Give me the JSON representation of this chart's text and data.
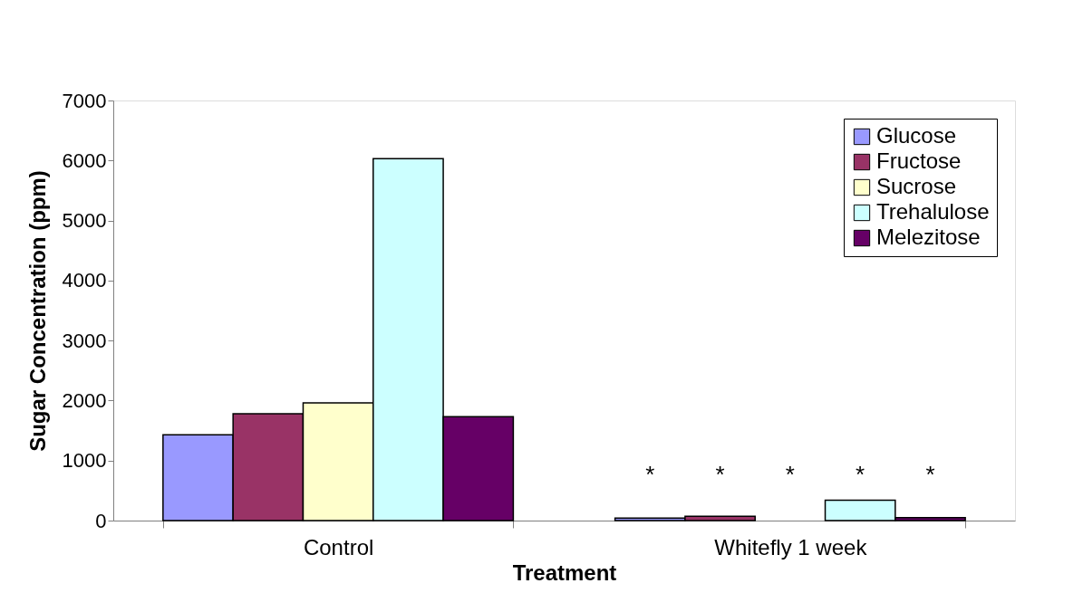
{
  "chart_data": {
    "type": "bar",
    "xlabel": "Treatment",
    "ylabel": "Sugar Concentration (ppm)",
    "categories": [
      "Control",
      "Whitefly 1 week"
    ],
    "series": [
      {
        "name": "Glucose",
        "color": "#9999ff",
        "values": [
          1430,
          40
        ]
      },
      {
        "name": "Fructose",
        "color": "#993366",
        "values": [
          1780,
          70
        ]
      },
      {
        "name": "Sucrose",
        "color": "#ffffcc",
        "values": [
          1960,
          0
        ]
      },
      {
        "name": "Trehalulose",
        "color": "#ccffff",
        "values": [
          6030,
          340
        ]
      },
      {
        "name": "Melezitose",
        "color": "#660066",
        "values": [
          1730,
          50
        ]
      }
    ],
    "ylim": [
      0,
      7000
    ],
    "yticks": [
      0,
      1000,
      2000,
      3000,
      4000,
      5000,
      6000,
      7000
    ],
    "grid": false,
    "legend": "top right",
    "annotations": [
      "*",
      "*",
      "*",
      "*",
      "*"
    ]
  }
}
